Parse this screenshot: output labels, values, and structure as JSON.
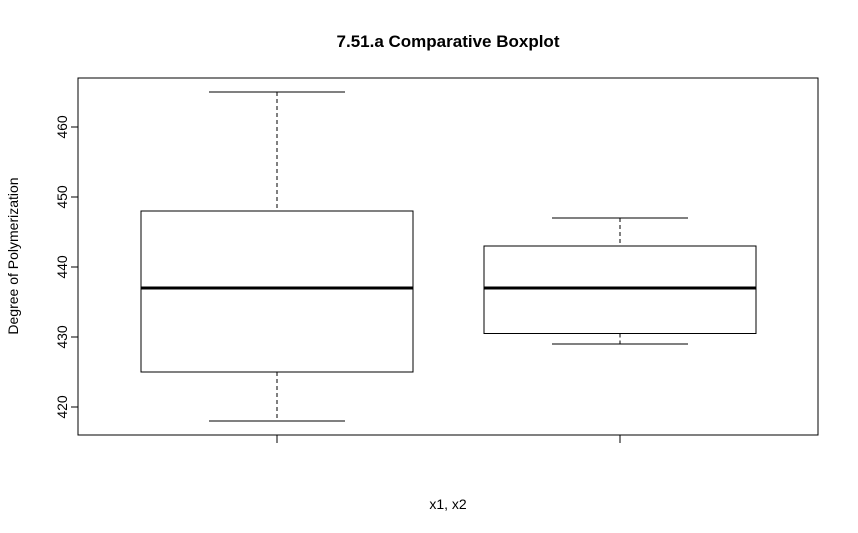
{
  "chart_data": {
    "type": "boxplot",
    "title": "7.51.a Comparative Boxplot",
    "xlabel": "x1, x2",
    "ylabel": "Degree of Polymerization",
    "ylim": [
      416,
      467
    ],
    "yticks": [
      420,
      430,
      440,
      450,
      460
    ],
    "grid": false,
    "boxes": [
      {
        "min": 418,
        "q1": 425,
        "median": 437,
        "q3": 448,
        "max": 465
      },
      {
        "min": 429,
        "q1": 430.5,
        "median": 437,
        "q3": 443,
        "max": 447
      }
    ]
  }
}
